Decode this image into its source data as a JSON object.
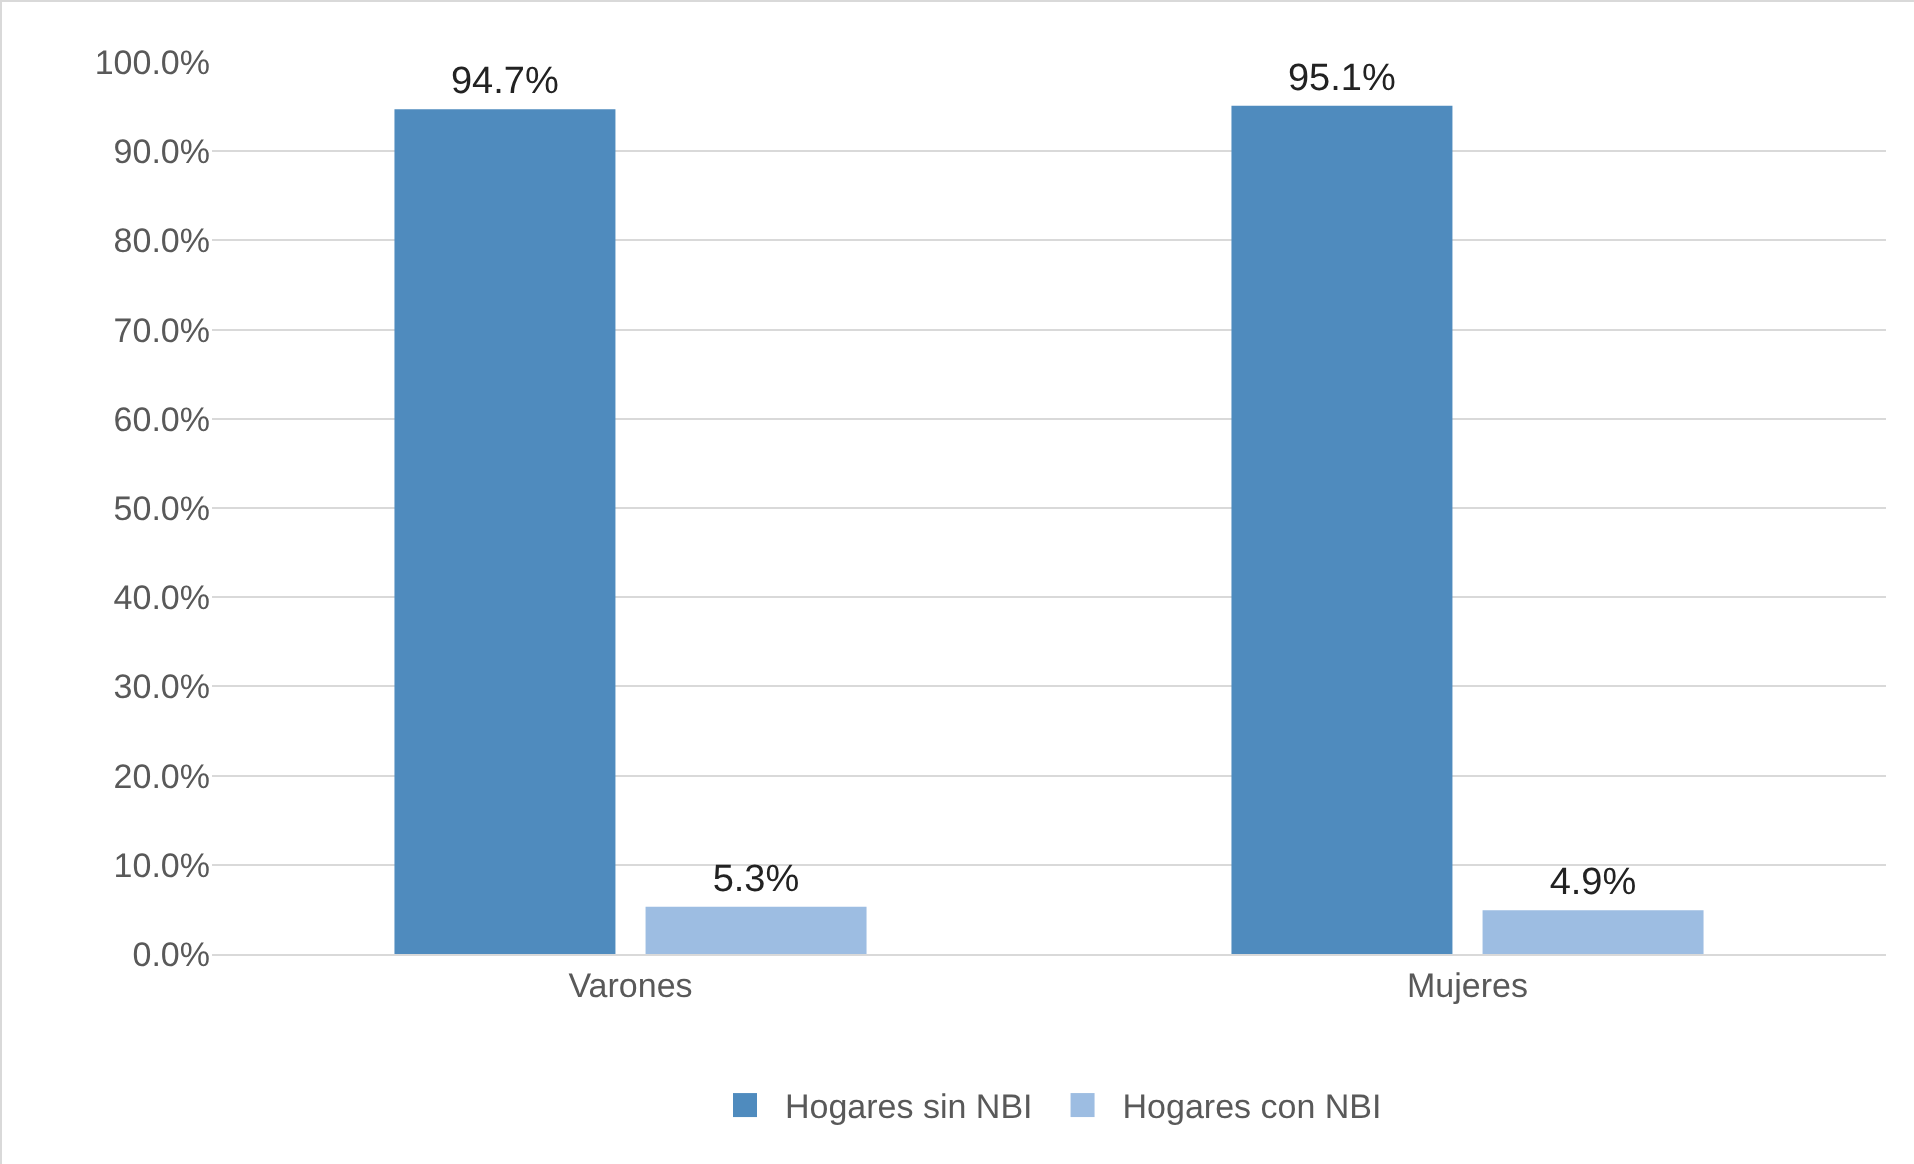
{
  "chart_data": {
    "type": "bar",
    "categories": [
      "Varones",
      "Mujeres"
    ],
    "series": [
      {
        "name": "Hogares sin NBI",
        "color": "#4f8bbe",
        "values": [
          94.7,
          95.1
        ],
        "value_labels": [
          "94.7%",
          "95.1%"
        ]
      },
      {
        "name": "Hogares con NBI",
        "color": "#9dbde2",
        "values": [
          5.3,
          4.9
        ],
        "value_labels": [
          "5.3%",
          "4.9%"
        ]
      }
    ],
    "ylim": [
      0,
      100
    ],
    "yticks": [
      {
        "value": 0,
        "label": "0.0%"
      },
      {
        "value": 10,
        "label": "10.0%"
      },
      {
        "value": 20,
        "label": "20.0%"
      },
      {
        "value": 30,
        "label": "30.0%"
      },
      {
        "value": 40,
        "label": "40.0%"
      },
      {
        "value": 50,
        "label": "50.0%"
      },
      {
        "value": 60,
        "label": "60.0%"
      },
      {
        "value": 70,
        "label": "70.0%"
      },
      {
        "value": 80,
        "label": "80.0%"
      },
      {
        "value": 90,
        "label": "90.0%"
      },
      {
        "value": 100,
        "label": "100.0%"
      }
    ],
    "grid": "y",
    "legend": "bottom"
  }
}
